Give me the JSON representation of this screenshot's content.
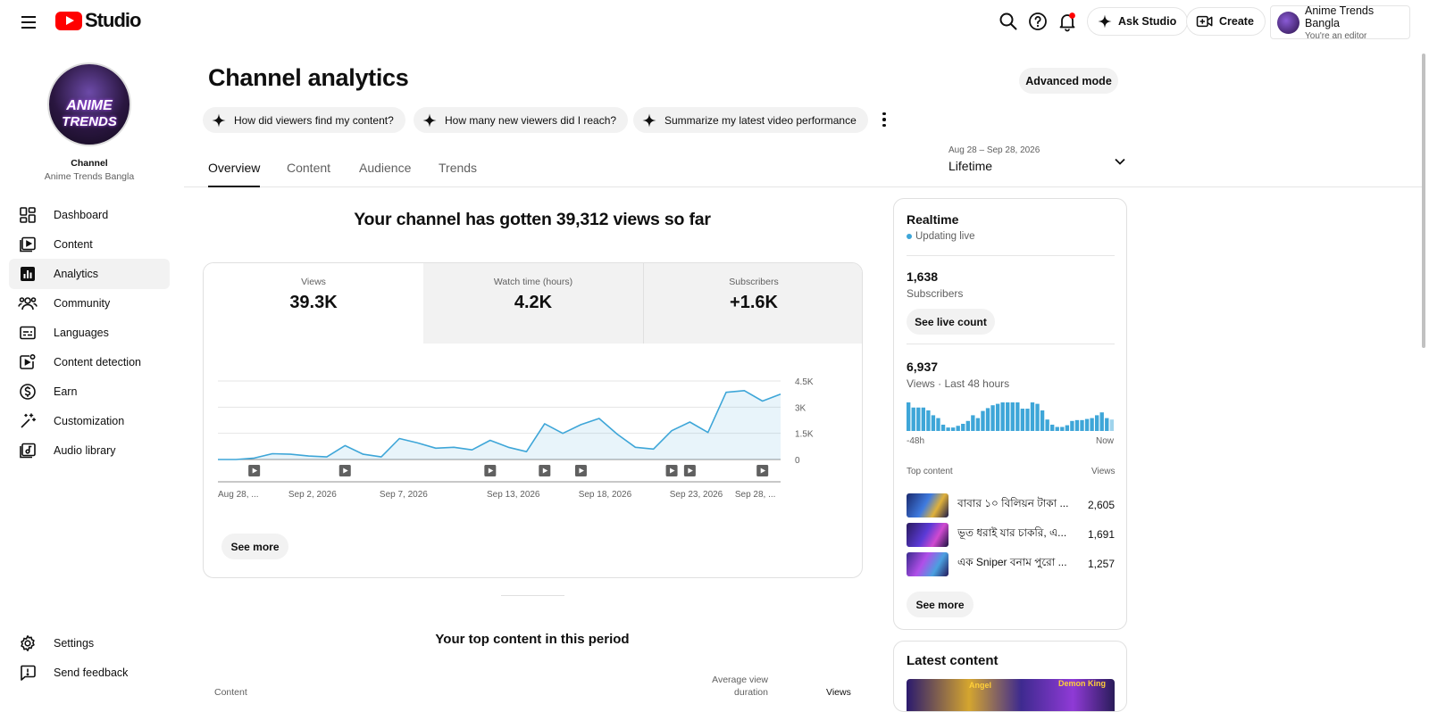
{
  "app": {
    "logo_text": "Studio",
    "ask_studio": "Ask Studio",
    "create": "Create",
    "account_name": "Anime Trends Bangla",
    "account_role": "You're an editor"
  },
  "sidebar": {
    "channel_avatar_line1": "ANIME",
    "channel_avatar_line2": "TRENDS",
    "channel_label": "Channel",
    "channel_name": "Anime Trends Bangla",
    "items": [
      {
        "label": "Dashboard",
        "icon": "dashboard-icon"
      },
      {
        "label": "Content",
        "icon": "content-icon"
      },
      {
        "label": "Analytics",
        "icon": "analytics-icon",
        "active": true
      },
      {
        "label": "Community",
        "icon": "community-icon"
      },
      {
        "label": "Languages",
        "icon": "languages-icon"
      },
      {
        "label": "Content detection",
        "icon": "content-detection-icon"
      },
      {
        "label": "Earn",
        "icon": "earn-icon"
      },
      {
        "label": "Customization",
        "icon": "customization-icon"
      },
      {
        "label": "Audio library",
        "icon": "audio-library-icon"
      }
    ],
    "bottom": [
      {
        "label": "Settings",
        "icon": "settings-icon"
      },
      {
        "label": "Send feedback",
        "icon": "feedback-icon"
      }
    ]
  },
  "main": {
    "title": "Channel analytics",
    "advanced_mode": "Advanced mode",
    "suggestions": [
      "How did viewers find my content?",
      "How many new viewers did I reach?",
      "Summarize my latest video performance"
    ],
    "tabs": [
      "Overview",
      "Content",
      "Audience",
      "Trends"
    ],
    "active_tab": "Overview",
    "date_range": "Aug 28 – Sep 28, 2026",
    "date_preset": "Lifetime",
    "headline": "Your channel has gotten 39,312 views so far",
    "metrics": [
      {
        "label": "Views",
        "value": "39.3K"
      },
      {
        "label": "Watch time (hours)",
        "value": "4.2K"
      },
      {
        "label": "Subscribers",
        "value": "+1.6K"
      }
    ],
    "see_more": "See more",
    "top_content_heading": "Your top content in this period",
    "table_headers": {
      "content": "Content",
      "avg_line1": "Average view",
      "avg_line2": "duration",
      "views": "Views"
    }
  },
  "chart_data": {
    "type": "area",
    "x_tick_labels": [
      "Aug 28, ...",
      "Sep 2, 2026",
      "Sep 7, 2026",
      "Sep 13, 2026",
      "Sep 18, 2026",
      "Sep 23, 2026",
      "Sep 28, ..."
    ],
    "y_tick_labels": [
      "0",
      "1.5K",
      "3K",
      "4.5K"
    ],
    "ylim": [
      0,
      4500
    ],
    "grid": true,
    "series": [
      {
        "values": [
          0,
          0,
          80,
          330,
          300,
          200,
          150,
          800,
          300,
          150,
          1200,
          950,
          650,
          700,
          550,
          1100,
          700,
          450,
          2050,
          1500,
          2000,
          2350,
          1450,
          700,
          600,
          1650,
          2150,
          1550,
          3850,
          3950,
          3350,
          3750
        ],
        "color": "#3ea6d8"
      }
    ],
    "video_markers": [
      2,
      7,
      15,
      18,
      20,
      25,
      26,
      30
    ]
  },
  "realtime": {
    "title": "Realtime",
    "live_text": "Updating live",
    "subscribers_value": "1,638",
    "subscribers_label": "Subscribers",
    "see_live_count": "See live count",
    "views_value": "6,937",
    "views_label": "Views · Last 48 hours",
    "bars": [
      1,
      0.82,
      0.82,
      0.82,
      0.72,
      0.55,
      0.45,
      0.22,
      0.12,
      0.12,
      0.18,
      0.25,
      0.35,
      0.55,
      0.45,
      0.7,
      0.8,
      0.9,
      0.95,
      1,
      1,
      1,
      1,
      0.78,
      0.78,
      1,
      0.95,
      0.72,
      0.4,
      0.22,
      0.14,
      0.14,
      0.2,
      0.35,
      0.38,
      0.38,
      0.42,
      0.45,
      0.55,
      0.65,
      0.45,
      0.4
    ],
    "axis_left": "-48h",
    "axis_right": "Now",
    "top_content_label": "Top content",
    "views_col": "Views",
    "top_items": [
      {
        "title": "বাবার ১০ বিলিয়ন টাকা ...",
        "views": "2,605"
      },
      {
        "title": "ভূত ধরাই যার চাকরি, এ...",
        "views": "1,691"
      },
      {
        "title": "এক Sniper বনাম পুরো ...",
        "views": "1,257"
      }
    ],
    "see_more": "See more"
  },
  "latest": {
    "title": "Latest content",
    "thumb_text1": "Angel",
    "thumb_text2": "Demon King"
  },
  "colors": {
    "accent": "#3ea6d8",
    "brand_red": "#ff0000",
    "chip_bg": "#f2f2f2"
  }
}
